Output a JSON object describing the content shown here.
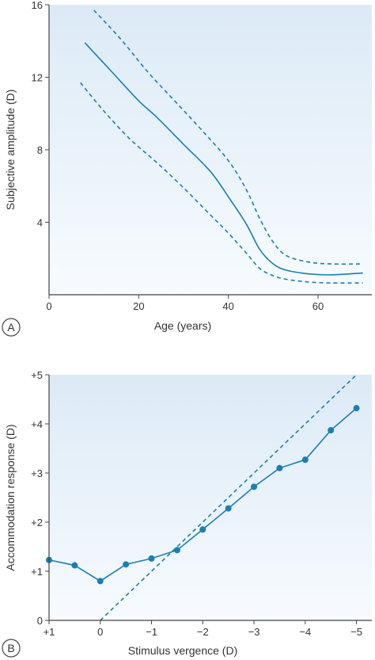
{
  "colors": {
    "line": "#1a7fb3",
    "marker": "#1a7fb3",
    "plot_bg_top": "#dceaf6",
    "plot_bg_bottom": "#f7fbfe",
    "axis": "#444444",
    "text": "#333333"
  },
  "chart_data": [
    {
      "type": "line",
      "panel_label": "A",
      "xlabel": "Age (years)",
      "ylabel": "Subjective amplitude (D)",
      "xlim": [
        0,
        72
      ],
      "ylim": [
        0,
        16
      ],
      "x_ticks": [
        0,
        20,
        40,
        60
      ],
      "x_tick_labels": [
        "0",
        "20",
        "40",
        "60"
      ],
      "y_ticks": [
        4,
        8,
        12,
        16
      ],
      "y_tick_labels": [
        "4",
        "8",
        "12",
        "16"
      ],
      "grid": false,
      "series": [
        {
          "style": "solid",
          "x": [
            8,
            14,
            20,
            24,
            30,
            36,
            40,
            44,
            47,
            50,
            53,
            58,
            63,
            70
          ],
          "y": [
            13.9,
            12.3,
            10.7,
            9.8,
            8.3,
            6.8,
            5.4,
            3.9,
            2.5,
            1.7,
            1.35,
            1.15,
            1.1,
            1.2
          ]
        },
        {
          "style": "dashed",
          "x": [
            10,
            16,
            22,
            28,
            34,
            40,
            44,
            47,
            50,
            53,
            58,
            63,
            70
          ],
          "y": [
            15.7,
            14.1,
            12.3,
            10.7,
            9.1,
            7.4,
            5.8,
            4.2,
            2.9,
            2.15,
            1.8,
            1.7,
            1.7
          ]
        },
        {
          "style": "dashed",
          "x": [
            7,
            12,
            18,
            24,
            30,
            36,
            40,
            44,
            47,
            50,
            53,
            58,
            63,
            70
          ],
          "y": [
            11.7,
            10.2,
            8.6,
            7.3,
            5.9,
            4.4,
            3.4,
            2.3,
            1.45,
            1.05,
            0.85,
            0.7,
            0.65,
            0.65
          ]
        }
      ]
    },
    {
      "type": "line",
      "panel_label": "B",
      "xlabel": "Stimulus vergence (D)",
      "ylabel": "Accommodation response (D)",
      "xlim": [
        1,
        -5.3
      ],
      "ylim": [
        0,
        5
      ],
      "x_ticks": [
        1,
        0,
        -1,
        -2,
        -3,
        -4,
        -5
      ],
      "x_tick_labels": [
        "+1",
        "0",
        "−1",
        "−2",
        "−3",
        "−4",
        "−5"
      ],
      "y_ticks": [
        0,
        1,
        2,
        3,
        4,
        5
      ],
      "y_tick_labels": [
        "0",
        "+1",
        "+2",
        "+3",
        "+4",
        "+5"
      ],
      "grid": false,
      "series": [
        {
          "style": "solid-markers",
          "x": [
            1,
            0.5,
            0,
            -0.5,
            -1,
            -1.5,
            -2,
            -2.5,
            -3,
            -3.5,
            -4,
            -4.5,
            -5
          ],
          "y": [
            1.23,
            1.12,
            0.8,
            1.14,
            1.26,
            1.43,
            1.85,
            2.28,
            2.72,
            3.1,
            3.27,
            3.87,
            4.32
          ]
        },
        {
          "style": "dashed",
          "x": [
            0,
            -5
          ],
          "y": [
            0,
            5
          ]
        }
      ]
    }
  ]
}
